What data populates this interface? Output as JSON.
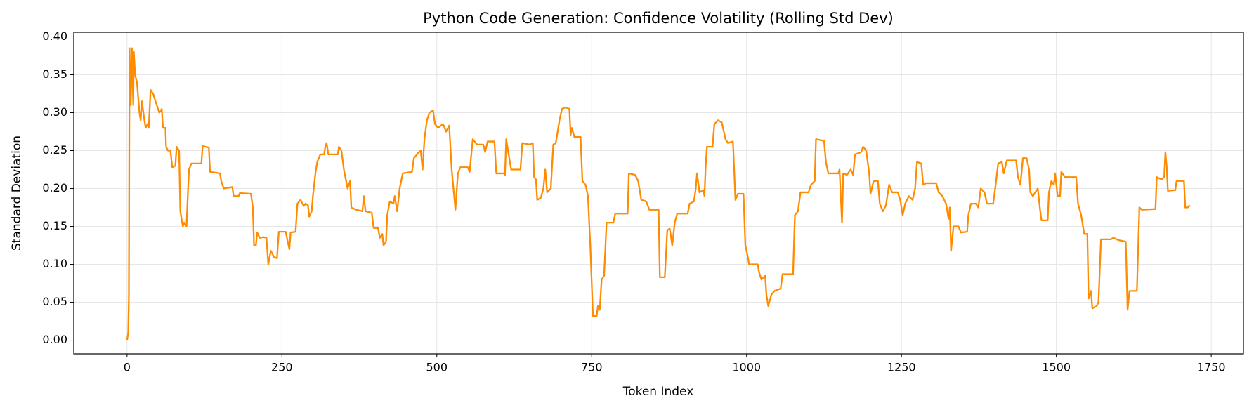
{
  "chart_data": {
    "type": "line",
    "title": "Python Code Generation: Confidence Volatility (Rolling Std Dev)",
    "xlabel": "Token Index",
    "ylabel": "Standard Deviation",
    "color": "#ff8c00",
    "grid": true,
    "xlim": [
      -86,
      1802
    ],
    "ylim": [
      -0.018,
      0.406
    ],
    "xticks": [
      0,
      250,
      500,
      750,
      1000,
      1250,
      1500,
      1750
    ],
    "yticks": [
      {
        "value": 0,
        "label": "0.00"
      },
      {
        "value": 0.05,
        "label": "0.05"
      },
      {
        "value": 0.1,
        "label": "0.10"
      },
      {
        "value": 0.15,
        "label": "0.15"
      },
      {
        "value": 0.2,
        "label": "0.20"
      },
      {
        "value": 0.25,
        "label": "0.25"
      },
      {
        "value": 0.3,
        "label": "0.30"
      },
      {
        "value": 0.35,
        "label": "0.35"
      },
      {
        "value": 0.4,
        "label": "0.40"
      }
    ],
    "x": [
      0,
      2,
      3,
      4,
      6,
      8,
      10,
      11,
      13,
      16,
      20,
      22,
      24,
      28,
      30,
      33,
      35,
      38,
      42,
      48,
      52,
      56,
      58,
      62,
      63,
      66,
      70,
      73,
      78,
      80,
      84,
      86,
      88,
      90,
      92,
      96,
      98,
      100,
      104,
      120,
      122,
      132,
      134,
      150,
      152,
      156,
      170,
      172,
      180,
      182,
      200,
      203,
      205,
      208,
      210,
      214,
      220,
      225,
      228,
      232,
      237,
      242,
      245,
      256,
      262,
      264,
      272,
      275,
      280,
      285,
      288,
      292,
      294,
      298,
      300,
      304,
      307,
      312,
      318,
      320,
      322,
      325,
      340,
      342,
      346,
      350,
      356,
      360,
      362,
      370,
      380,
      382,
      385,
      395,
      398,
      405,
      408,
      412,
      414,
      418,
      420,
      424,
      430,
      432,
      436,
      440,
      445,
      460,
      463,
      470,
      474,
      477,
      480,
      484,
      488,
      494,
      497,
      502,
      510,
      515,
      520,
      524,
      528,
      530,
      534,
      538,
      550,
      553,
      558,
      565,
      575,
      578,
      582,
      593,
      596,
      608,
      610,
      612,
      616,
      620,
      635,
      638,
      650,
      655,
      657,
      660,
      662,
      668,
      672,
      675,
      678,
      684,
      688,
      692,
      698,
      702,
      708,
      714,
      716,
      718,
      722,
      732,
      735,
      740,
      744,
      748,
      752,
      758,
      760,
      763,
      766,
      770,
      774,
      785,
      788,
      808,
      810,
      820,
      825,
      830,
      838,
      843,
      858,
      860,
      868,
      872,
      876,
      880,
      884,
      888,
      905,
      908,
      915,
      918,
      920,
      924,
      930,
      932,
      934,
      936,
      945,
      948,
      954,
      960,
      966,
      970,
      978,
      982,
      986,
      995,
      998,
      1002,
      1004,
      1018,
      1020,
      1024,
      1030,
      1032,
      1035,
      1040,
      1045,
      1055,
      1058,
      1075,
      1078,
      1083,
      1087,
      1100,
      1104,
      1110,
      1112,
      1125,
      1128,
      1132,
      1148,
      1150,
      1154,
      1156,
      1162,
      1168,
      1172,
      1175,
      1185,
      1188,
      1193,
      1198,
      1200,
      1205,
      1212,
      1215,
      1220,
      1225,
      1230,
      1235,
      1244,
      1248,
      1252,
      1256,
      1262,
      1268,
      1272,
      1275,
      1282,
      1285,
      1290,
      1306,
      1310,
      1316,
      1322,
      1326,
      1328,
      1330,
      1334,
      1342,
      1346,
      1356,
      1358,
      1362,
      1370,
      1374,
      1378,
      1384,
      1388,
      1398,
      1402,
      1406,
      1412,
      1415,
      1420,
      1435,
      1438,
      1442,
      1446,
      1452,
      1456,
      1458,
      1462,
      1470,
      1474,
      1476,
      1486,
      1488,
      1492,
      1496,
      1498,
      1502,
      1506,
      1508,
      1514,
      1532,
      1535,
      1540,
      1545,
      1550,
      1552,
      1556,
      1558,
      1565,
      1568,
      1572,
      1588,
      1592,
      1600,
      1612,
      1615,
      1618,
      1630,
      1632,
      1634,
      1638,
      1660,
      1662,
      1670,
      1674,
      1676,
      1678,
      1680,
      1692,
      1694,
      1706,
      1708,
      1712,
      1714,
      1716
    ],
    "values": [
      0,
      0.01,
      0.06,
      0.385,
      0.31,
      0.385,
      0.31,
      0.38,
      0.35,
      0.34,
      0.3,
      0.29,
      0.315,
      0.29,
      0.28,
      0.285,
      0.28,
      0.33,
      0.325,
      0.31,
      0.3,
      0.305,
      0.28,
      0.28,
      0.255,
      0.25,
      0.25,
      0.228,
      0.23,
      0.255,
      0.25,
      0.17,
      0.16,
      0.15,
      0.155,
      0.15,
      0.19,
      0.225,
      0.233,
      0.233,
      0.256,
      0.254,
      0.222,
      0.22,
      0.21,
      0.2,
      0.202,
      0.19,
      0.19,
      0.194,
      0.193,
      0.175,
      0.125,
      0.125,
      0.142,
      0.135,
      0.136,
      0.135,
      0.1,
      0.118,
      0.11,
      0.108,
      0.143,
      0.143,
      0.12,
      0.142,
      0.143,
      0.18,
      0.185,
      0.177,
      0.18,
      0.178,
      0.163,
      0.17,
      0.19,
      0.22,
      0.235,
      0.245,
      0.245,
      0.255,
      0.26,
      0.245,
      0.245,
      0.255,
      0.25,
      0.225,
      0.2,
      0.21,
      0.175,
      0.172,
      0.17,
      0.19,
      0.17,
      0.168,
      0.148,
      0.148,
      0.135,
      0.14,
      0.125,
      0.13,
      0.165,
      0.183,
      0.18,
      0.19,
      0.17,
      0.2,
      0.22,
      0.222,
      0.24,
      0.247,
      0.25,
      0.225,
      0.265,
      0.29,
      0.3,
      0.303,
      0.285,
      0.28,
      0.285,
      0.275,
      0.283,
      0.225,
      0.19,
      0.172,
      0.22,
      0.228,
      0.228,
      0.222,
      0.265,
      0.258,
      0.258,
      0.248,
      0.262,
      0.262,
      0.22,
      0.22,
      0.218,
      0.265,
      0.245,
      0.225,
      0.225,
      0.26,
      0.258,
      0.26,
      0.215,
      0.212,
      0.185,
      0.188,
      0.2,
      0.225,
      0.195,
      0.2,
      0.258,
      0.26,
      0.29,
      0.305,
      0.307,
      0.305,
      0.27,
      0.28,
      0.268,
      0.268,
      0.21,
      0.205,
      0.19,
      0.12,
      0.032,
      0.032,
      0.045,
      0.04,
      0.08,
      0.085,
      0.155,
      0.155,
      0.167,
      0.167,
      0.22,
      0.218,
      0.21,
      0.185,
      0.183,
      0.172,
      0.172,
      0.083,
      0.083,
      0.145,
      0.147,
      0.125,
      0.155,
      0.167,
      0.167,
      0.18,
      0.183,
      0.2,
      0.22,
      0.195,
      0.198,
      0.19,
      0.23,
      0.255,
      0.255,
      0.285,
      0.29,
      0.287,
      0.265,
      0.26,
      0.262,
      0.185,
      0.193,
      0.193,
      0.125,
      0.11,
      0.1,
      0.1,
      0.09,
      0.08,
      0.085,
      0.06,
      0.045,
      0.06,
      0.065,
      0.068,
      0.087,
      0.087,
      0.165,
      0.17,
      0.195,
      0.195,
      0.205,
      0.21,
      0.265,
      0.263,
      0.235,
      0.22,
      0.22,
      0.225,
      0.155,
      0.22,
      0.218,
      0.225,
      0.218,
      0.245,
      0.248,
      0.255,
      0.25,
      0.22,
      0.193,
      0.21,
      0.21,
      0.18,
      0.17,
      0.178,
      0.205,
      0.195,
      0.195,
      0.185,
      0.165,
      0.18,
      0.19,
      0.185,
      0.2,
      0.235,
      0.233,
      0.205,
      0.207,
      0.207,
      0.195,
      0.19,
      0.18,
      0.16,
      0.175,
      0.118,
      0.15,
      0.15,
      0.142,
      0.143,
      0.165,
      0.18,
      0.18,
      0.175,
      0.2,
      0.195,
      0.18,
      0.18,
      0.205,
      0.233,
      0.235,
      0.22,
      0.237,
      0.237,
      0.215,
      0.205,
      0.24,
      0.24,
      0.225,
      0.195,
      0.19,
      0.2,
      0.17,
      0.158,
      0.158,
      0.195,
      0.21,
      0.205,
      0.22,
      0.19,
      0.19,
      0.222,
      0.215,
      0.215,
      0.18,
      0.165,
      0.14,
      0.14,
      0.055,
      0.065,
      0.042,
      0.045,
      0.05,
      0.133,
      0.133,
      0.135,
      0.132,
      0.13,
      0.04,
      0.065,
      0.065,
      0.12,
      0.175,
      0.172,
      0.173,
      0.215,
      0.212,
      0.215,
      0.248,
      0.23,
      0.197,
      0.198,
      0.21,
      0.21,
      0.175,
      0.175,
      0.177,
      0.177
    ]
  }
}
